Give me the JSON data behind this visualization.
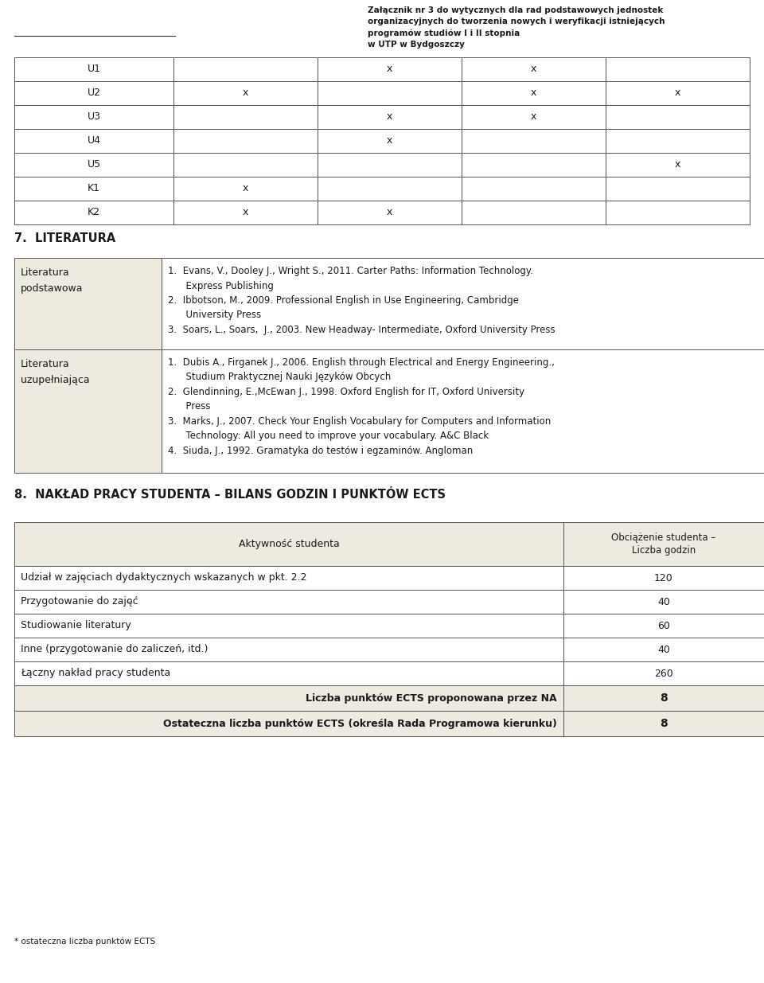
{
  "header_text": "Załącznik nr 3 do wytycznych dla rad podstawowych jednostek\norganizacyjnych do tworzenia nowych i weryfikacji istniejących\nprogramów studiów I i II stopnia\nw UTP w Bydgoszczy",
  "top_table_cells": [
    [
      "U1",
      "",
      "x",
      "x",
      ""
    ],
    [
      "U2",
      "x",
      "",
      "x",
      "x"
    ],
    [
      "U3",
      "",
      "x",
      "x",
      ""
    ],
    [
      "U4",
      "",
      "x",
      "",
      ""
    ],
    [
      "U5",
      "",
      "",
      "",
      "x"
    ],
    [
      "K1",
      "x",
      "",
      "",
      ""
    ],
    [
      "K2",
      "x",
      "x",
      "",
      ""
    ]
  ],
  "section7_title": "7.  LITERATURA",
  "lit_rows": [
    {
      "label": "Literatura\npodstawowa",
      "content": "1.  Evans, V., Dooley J., Wright S., 2011. Carter Paths: Information Technology.\n      Express Publishing\n2.  Ibbotson, M., 2009. Professional English in Use Engineering, Cambridge\n      University Press\n3.  Soars, L., Soars,  J., 2003. New Headway- Intermediate, Oxford University Press"
    },
    {
      "label": "Literatura\nuzupełniająca",
      "content": "1.  Dubis A., Firganek J., 2006. English through Electrical and Energy Engineering.,\n      Studium Praktycznej Nauki Języków Obcych\n2.  Glendinning, E.,McEwan J., 1998. Oxford English for IT, Oxford University\n      Press\n3.  Marks, J., 2007. Check Your English Vocabulary for Computers and Information\n      Technology: All you need to improve your vocabulary. A&C Black\n4.  Siuda, J., 1992. Gramatyka do testów i egzaminów. Angloman"
    }
  ],
  "section8_title": "8.  NAKŁAD PRACY STUDENTA – BILANS GODZIN I PUNKTÓW ECTS",
  "nak_header": [
    "Aktywność studenta",
    "Obciążenie studenta –\nLiczba godzin"
  ],
  "nak_rows": [
    [
      "Udział w zajęciach dydaktycznych wskazanych w pkt. 2.2",
      "120"
    ],
    [
      "Przygotowanie do zajęć",
      "40"
    ],
    [
      "Studiowanie literatury",
      "60"
    ],
    [
      "Inne (przygotowanie do zaliczeń, itd.)",
      "40"
    ],
    [
      "Łączny nakład pracy studenta",
      "260"
    ]
  ],
  "nak_bold_rows": [
    [
      "Liczba punktów ECTS proponowana przez NA",
      "8"
    ],
    [
      "Ostateczna liczba punktów ECTS (określa Rada Programowa kierunku)",
      "8"
    ]
  ],
  "footnote": "* ostateczna liczba punktów ECTS",
  "bg_color": "#edeae0",
  "white": "#ffffff",
  "border_color": "#555555",
  "text_color": "#1a1a1a"
}
